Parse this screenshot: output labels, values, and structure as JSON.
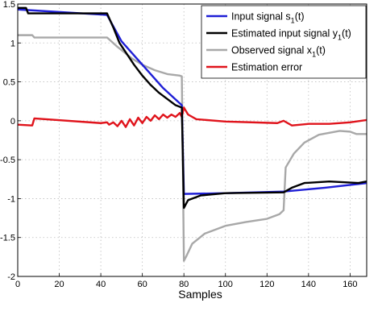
{
  "chart_data": {
    "type": "line",
    "title": "",
    "xlabel": "Samples",
    "ylabel": "",
    "xlim": [
      0,
      168
    ],
    "ylim": [
      -2,
      1.5
    ],
    "x_ticks": [
      0,
      20,
      40,
      60,
      80,
      100,
      120,
      140,
      160
    ],
    "y_ticks": [
      1.5,
      1,
      0.5,
      0,
      -0.5,
      -1,
      -1.5,
      -2
    ],
    "x_tick_labels": [
      "0",
      "20",
      "40",
      "60",
      "80",
      "100",
      "120",
      "140",
      "160"
    ],
    "y_tick_labels": [
      "1.5",
      "1",
      "0.5",
      "0",
      "-0.5",
      "-1",
      "-1.5",
      "-2"
    ],
    "grid": true,
    "legend_position": "top-right",
    "series": [
      {
        "name": "Input signal s",
        "legend_label": {
          "main": "Input signal s",
          "sub": "1",
          "suffix": "(t)"
        },
        "color": "#1f1fd6",
        "points": [
          [
            0,
            1.43
          ],
          [
            43,
            1.36
          ],
          [
            50,
            1.02
          ],
          [
            60,
            0.72
          ],
          [
            70,
            0.42
          ],
          [
            79,
            0.2
          ],
          [
            80,
            -0.94
          ],
          [
            100,
            -0.93
          ],
          [
            128,
            -0.91
          ],
          [
            148,
            -0.86
          ],
          [
            168,
            -0.8
          ]
        ]
      },
      {
        "name": "Estimated input signal y",
        "legend_label": {
          "main": "Estimated input signal y",
          "sub": "1",
          "suffix": "(t)"
        },
        "color": "#000000",
        "points": [
          [
            0,
            1.45
          ],
          [
            4,
            1.45
          ],
          [
            5,
            1.38
          ],
          [
            43,
            1.38
          ],
          [
            46,
            1.2
          ],
          [
            49,
            1.0
          ],
          [
            52,
            0.88
          ],
          [
            56,
            0.72
          ],
          [
            60,
            0.58
          ],
          [
            64,
            0.46
          ],
          [
            68,
            0.36
          ],
          [
            72,
            0.28
          ],
          [
            76,
            0.2
          ],
          [
            79,
            0.17
          ],
          [
            80,
            -1.12
          ],
          [
            82,
            -1.02
          ],
          [
            88,
            -0.96
          ],
          [
            100,
            -0.93
          ],
          [
            128,
            -0.92
          ],
          [
            132,
            -0.86
          ],
          [
            138,
            -0.8
          ],
          [
            150,
            -0.78
          ],
          [
            164,
            -0.8
          ],
          [
            168,
            -0.78
          ]
        ]
      },
      {
        "name": "Observed signal x",
        "legend_label": {
          "main": "Observed signal x",
          "sub": "1",
          "suffix": "(t)"
        },
        "color": "#a8a8a8",
        "points": [
          [
            0,
            1.1
          ],
          [
            7,
            1.1
          ],
          [
            8,
            1.07
          ],
          [
            43,
            1.07
          ],
          [
            48,
            0.95
          ],
          [
            55,
            0.8
          ],
          [
            60,
            0.72
          ],
          [
            66,
            0.65
          ],
          [
            72,
            0.6
          ],
          [
            78,
            0.58
          ],
          [
            79,
            0.57
          ],
          [
            80,
            -1.8
          ],
          [
            81,
            -1.75
          ],
          [
            84,
            -1.58
          ],
          [
            90,
            -1.45
          ],
          [
            100,
            -1.35
          ],
          [
            110,
            -1.3
          ],
          [
            120,
            -1.26
          ],
          [
            126,
            -1.2
          ],
          [
            128,
            -1.15
          ],
          [
            129,
            -0.6
          ],
          [
            133,
            -0.42
          ],
          [
            138,
            -0.28
          ],
          [
            145,
            -0.18
          ],
          [
            155,
            -0.13
          ],
          [
            160,
            -0.14
          ],
          [
            163,
            -0.17
          ],
          [
            168,
            -0.17
          ]
        ]
      },
      {
        "name": "Estimation error",
        "legend_label": {
          "main": "Estimation error",
          "sub": "",
          "suffix": ""
        },
        "color": "#e0141c",
        "points": [
          [
            0,
            -0.05
          ],
          [
            7,
            -0.06
          ],
          [
            8,
            0.03
          ],
          [
            40,
            -0.03
          ],
          [
            43,
            -0.02
          ],
          [
            44,
            -0.05
          ],
          [
            46,
            -0.02
          ],
          [
            48,
            -0.07
          ],
          [
            50,
            0.0
          ],
          [
            52,
            -0.08
          ],
          [
            54,
            0.02
          ],
          [
            56,
            -0.06
          ],
          [
            58,
            0.04
          ],
          [
            60,
            -0.03
          ],
          [
            62,
            0.05
          ],
          [
            64,
            0.0
          ],
          [
            66,
            0.07
          ],
          [
            68,
            0.02
          ],
          [
            70,
            0.08
          ],
          [
            72,
            0.04
          ],
          [
            74,
            0.08
          ],
          [
            76,
            0.05
          ],
          [
            78,
            0.1
          ],
          [
            79,
            0.05
          ],
          [
            80,
            0.17
          ],
          [
            82,
            0.08
          ],
          [
            86,
            0.02
          ],
          [
            100,
            -0.01
          ],
          [
            125,
            -0.03
          ],
          [
            128,
            0.0
          ],
          [
            132,
            -0.06
          ],
          [
            140,
            -0.04
          ],
          [
            150,
            -0.04
          ],
          [
            160,
            -0.02
          ],
          [
            168,
            0.01
          ]
        ]
      }
    ]
  }
}
